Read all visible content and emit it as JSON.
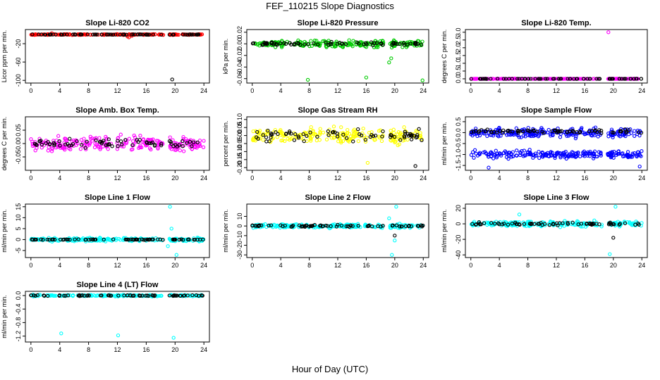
{
  "figure": {
    "title": "FEF_110215 Slope Diagnostics",
    "xlabel": "Hour of Day (UTC)"
  },
  "chart_data": [
    {
      "type": "scatter",
      "title": "Slope Li-820 CO2",
      "ylabel": "Licor ppm per min.",
      "xlim": [
        0,
        24
      ],
      "ylim": [
        -100,
        5
      ],
      "xticks": [
        "0",
        "4",
        "8",
        "12",
        "16",
        "20",
        "24"
      ],
      "yticks": [
        "-100",
        "-60",
        "-20"
      ],
      "ytick_values": [
        -100,
        -60,
        -20
      ],
      "series": [
        {
          "color": "#ff0000",
          "center": 0,
          "spread": 1.2,
          "outliers": [
            [
              2.9,
              3
            ],
            [
              13.4,
              -4
            ],
            [
              13.6,
              -6
            ],
            [
              14.0,
              -3
            ],
            [
              19.7,
              -1
            ]
          ]
        },
        {
          "color": "#000000",
          "center": 0,
          "spread": 0.6,
          "outliers": [
            [
              19.6,
              -98
            ]
          ]
        }
      ]
    },
    {
      "type": "scatter",
      "title": "Slope Li-820 Pressure",
      "ylabel": "kPa per min.",
      "xlim": [
        0,
        24
      ],
      "ylim": [
        -0.063,
        0.02
      ],
      "xticks": [
        "0",
        "4",
        "8",
        "12",
        "16",
        "20",
        "24"
      ],
      "yticks": [
        "-0.06",
        "-0.04",
        "-0.02",
        "0.00",
        "0.02"
      ],
      "ytick_values": [
        -0.06,
        -0.04,
        -0.02,
        0,
        0.02
      ],
      "series": [
        {
          "color": "#00cc00",
          "center": 0,
          "spread": 0.008,
          "outliers": [
            [
              7.8,
              -0.062
            ],
            [
              16.0,
              -0.058
            ],
            [
              19.2,
              -0.032
            ],
            [
              23.9,
              -0.063
            ],
            [
              19.5,
              -0.025
            ]
          ]
        },
        {
          "color": "#000000",
          "center": 0,
          "spread": 0.004,
          "outliers": []
        }
      ]
    },
    {
      "type": "scatter",
      "title": "Slope Li-820 Temp.",
      "ylabel": "degrees C per min.",
      "xlim": [
        0,
        24
      ],
      "ylim": [
        -0.1,
        3.0
      ],
      "xticks": [
        "0",
        "4",
        "8",
        "12",
        "16",
        "20",
        "24"
      ],
      "yticks": [
        "0.0",
        "0.5",
        "1.0",
        "1.5",
        "2.0",
        "2.5",
        "3.0"
      ],
      "ytick_values": [
        0,
        0.5,
        1.0,
        1.5,
        2.0,
        2.5,
        3.0
      ],
      "series": [
        {
          "color": "#ff00ff",
          "center": 0,
          "spread": 0.01,
          "outliers": [
            [
              19.3,
              3.0
            ]
          ]
        },
        {
          "color": "#000000",
          "center": 0,
          "spread": 0.005,
          "outliers": []
        }
      ]
    },
    {
      "type": "scatter",
      "title": "Slope Amb. Box Temp.",
      "ylabel": "degrees C per min.",
      "xlim": [
        0,
        24
      ],
      "ylim": [
        -0.09,
        0.09
      ],
      "xticks": [
        "0",
        "4",
        "8",
        "12",
        "16",
        "20",
        "24"
      ],
      "yticks": [
        "-0.05",
        "0.00",
        "0.05"
      ],
      "ytick_values": [
        -0.05,
        0,
        0.05
      ],
      "series": [
        {
          "color": "#ff00ff",
          "center": 0,
          "spread": 0.04,
          "outliers": []
        },
        {
          "color": "#000000",
          "center": 0,
          "spread": 0.025,
          "outliers": []
        }
      ]
    },
    {
      "type": "scatter",
      "title": "Slope Gas Stream RH",
      "ylabel": "percent per min.",
      "xlim": [
        0,
        24
      ],
      "ylim": [
        -0.2,
        0.1
      ],
      "xticks": [
        "0",
        "4",
        "8",
        "12",
        "16",
        "20",
        "24"
      ],
      "yticks": [
        "-0.20",
        "-0.15",
        "-0.10",
        "-0.05",
        "0.00",
        "0.05",
        "0.10"
      ],
      "ytick_values": [
        -0.2,
        -0.15,
        -0.1,
        -0.05,
        0,
        0.05,
        0.1
      ],
      "series": [
        {
          "color": "#ffff00",
          "center": 0,
          "spread": 0.07,
          "outliers": [
            [
              16.2,
              -0.17
            ]
          ]
        },
        {
          "color": "#000000",
          "center": 0,
          "spread": 0.05,
          "outliers": [
            [
              22.9,
              -0.19
            ]
          ]
        }
      ]
    },
    {
      "type": "scatter",
      "title": "Slope Sample Flow",
      "ylabel": "ml/min per min.",
      "xlim": [
        0,
        24
      ],
      "ylim": [
        -1.6,
        0.6
      ],
      "xticks": [
        "0",
        "4",
        "8",
        "12",
        "16",
        "20",
        "24"
      ],
      "yticks": [
        "-1.5",
        "-1.0",
        "-0.5",
        "0.0",
        "0.5"
      ],
      "ytick_values": [
        -1.5,
        -1.0,
        -0.5,
        0,
        0.5
      ],
      "series": [
        {
          "color": "#0000ff",
          "center": 0,
          "spread": 0.3,
          "outliers": [
            [
              2.5,
              -1.6
            ],
            [
              23.7,
              -1.55
            ]
          ]
        },
        {
          "color": "#0000ff",
          "center": -1.0,
          "spread": 0.25,
          "outliers": []
        },
        {
          "color": "#000000",
          "center": 0.05,
          "spread": 0.12,
          "outliers": []
        }
      ]
    },
    {
      "type": "scatter",
      "title": "Slope Line 1 Flow",
      "ylabel": "ml/min per min.",
      "xlim": [
        0,
        24
      ],
      "ylim": [
        -7,
        15
      ],
      "xticks": [
        "0",
        "4",
        "8",
        "12",
        "16",
        "20",
        "24"
      ],
      "yticks": [
        "-5",
        "0",
        "5",
        "10",
        "15"
      ],
      "ytick_values": [
        -5,
        0,
        5,
        10,
        15
      ],
      "series": [
        {
          "color": "#00ffff",
          "center": 0,
          "spread": 1.2,
          "outliers": [
            [
              19.3,
              15
            ],
            [
              19.5,
              5
            ],
            [
              19.0,
              -3
            ],
            [
              20.2,
              -7
            ]
          ]
        },
        {
          "color": "#000000",
          "center": 0,
          "spread": 0.2,
          "outliers": []
        }
      ]
    },
    {
      "type": "scatter",
      "title": "Slope Line 2 Flow",
      "ylabel": "ml/min per min.",
      "xlim": [
        0,
        24
      ],
      "ylim": [
        -30,
        20
      ],
      "xticks": [
        "0",
        "4",
        "8",
        "12",
        "16",
        "20",
        "24"
      ],
      "yticks": [
        "-30",
        "-20",
        "-10",
        "0",
        "10"
      ],
      "ytick_values": [
        -30,
        -20,
        -10,
        0,
        10
      ],
      "series": [
        {
          "color": "#00ffff",
          "center": 0,
          "spread": 3,
          "outliers": [
            [
              20.2,
              20
            ],
            [
              19.6,
              -30
            ],
            [
              19.2,
              8
            ],
            [
              20.0,
              -15
            ]
          ]
        },
        {
          "color": "#000000",
          "center": 0,
          "spread": 1.5,
          "outliers": [
            [
              20.0,
              -10
            ]
          ]
        }
      ]
    },
    {
      "type": "scatter",
      "title": "Slope Line 3 Flow",
      "ylabel": "ml/min per min.",
      "xlim": [
        0,
        24
      ],
      "ylim": [
        -40,
        22
      ],
      "xticks": [
        "0",
        "4",
        "8",
        "12",
        "16",
        "20",
        "24"
      ],
      "yticks": [
        "-40",
        "-20",
        "0",
        "20"
      ],
      "ytick_values": [
        -40,
        -20,
        0,
        20
      ],
      "series": [
        {
          "color": "#00ffff",
          "center": 0,
          "spread": 5,
          "outliers": [
            [
              19.5,
              -39
            ],
            [
              20.3,
              22
            ],
            [
              6.8,
              12
            ]
          ]
        },
        {
          "color": "#000000",
          "center": 0,
          "spread": 2.5,
          "outliers": [
            [
              20.0,
              -18
            ]
          ]
        }
      ]
    },
    {
      "type": "scatter",
      "title": "Slope Line 4 (LT) Flow",
      "ylabel": "ml/min per min.",
      "xlim": [
        0,
        24
      ],
      "ylim": [
        -1.3,
        0.05
      ],
      "xticks": [
        "0",
        "4",
        "8",
        "12",
        "16",
        "20",
        "24"
      ],
      "yticks": [
        "-1.2",
        "-0.8",
        "-0.4",
        "0.0"
      ],
      "ytick_values": [
        -1.2,
        -0.8,
        -0.4,
        0
      ],
      "series": [
        {
          "color": "#00ffff",
          "center": 0,
          "spread": 0.03,
          "outliers": [
            [
              4.2,
              -1.12
            ],
            [
              12.1,
              -1.18
            ],
            [
              19.8,
              -1.25
            ]
          ]
        },
        {
          "color": "#000000",
          "center": 0,
          "spread": 0.02,
          "outliers": []
        }
      ]
    }
  ]
}
